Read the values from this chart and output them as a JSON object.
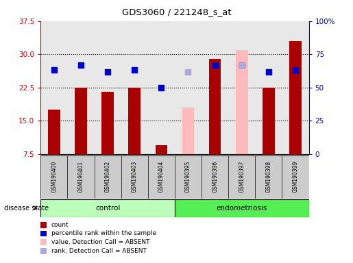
{
  "title": "GDS3060 / 221248_s_at",
  "samples": [
    "GSM190400",
    "GSM190401",
    "GSM190402",
    "GSM190403",
    "GSM190404",
    "GSM190395",
    "GSM190396",
    "GSM190397",
    "GSM190398",
    "GSM190399"
  ],
  "groups": [
    "control",
    "control",
    "control",
    "control",
    "control",
    "endometriosis",
    "endometriosis",
    "endometriosis",
    "endometriosis",
    "endometriosis"
  ],
  "bar_values": [
    17.5,
    22.5,
    21.5,
    22.5,
    9.5,
    null,
    29.0,
    null,
    22.5,
    33.0
  ],
  "absent_bar_values": [
    null,
    null,
    null,
    null,
    null,
    18.0,
    null,
    31.0,
    null,
    null
  ],
  "absent_bar_color": "#ffbbbb",
  "dot_values": [
    26.5,
    27.5,
    26.0,
    26.5,
    22.5,
    null,
    27.5,
    27.5,
    26.0,
    26.5
  ],
  "absent_dot_values": [
    null,
    null,
    null,
    null,
    null,
    26.0,
    null,
    27.5,
    null,
    null
  ],
  "absent_dot_color": "#aaaadd",
  "bar_color": "#aa0000",
  "dot_color": "#0000cc",
  "ylim_left": [
    7.5,
    37.5
  ],
  "ylim_right": [
    0,
    100
  ],
  "left_yticks": [
    7.5,
    15.0,
    22.5,
    30.0,
    37.5
  ],
  "right_yticks": [
    0,
    25,
    50,
    75,
    100
  ],
  "right_yticklabels": [
    "0",
    "25",
    "50",
    "75",
    "100%"
  ],
  "left_color": "#cc0000",
  "right_color": "#0000bb",
  "group_colors": {
    "control": "#bbffbb",
    "endometriosis": "#55ee55"
  },
  "group_label": "disease state",
  "legend_items": [
    {
      "label": "count",
      "color": "#aa0000"
    },
    {
      "label": "percentile rank within the sample",
      "color": "#0000cc"
    },
    {
      "label": "value, Detection Call = ABSENT",
      "color": "#ffbbbb"
    },
    {
      "label": "rank, Detection Call = ABSENT",
      "color": "#aaaadd"
    }
  ],
  "bar_width": 0.45,
  "dot_size": 28,
  "baseline": 7.5,
  "grid_lines": [
    15.0,
    22.5,
    30.0
  ],
  "bg_color": "#e8e8e8"
}
